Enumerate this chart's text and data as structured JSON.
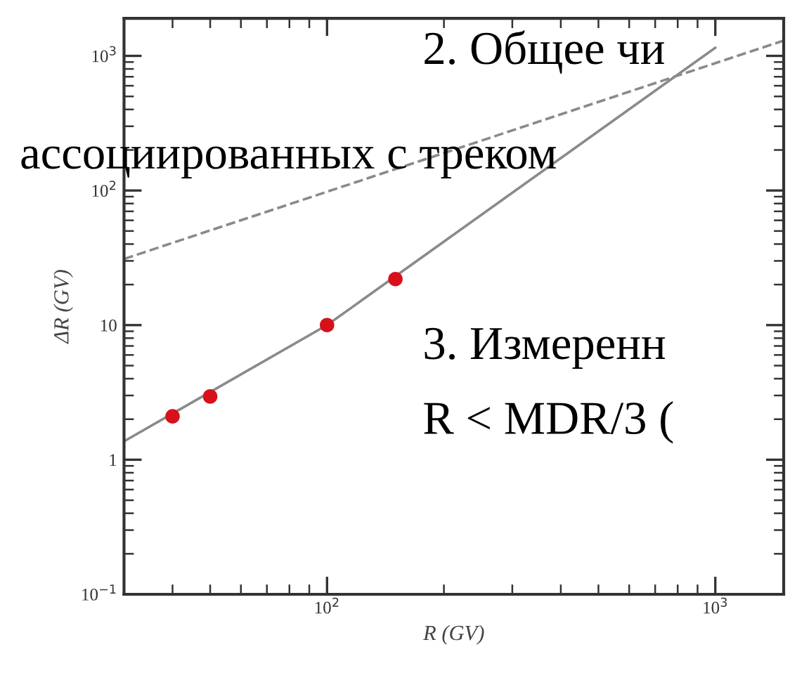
{
  "chart_data": {
    "type": "line",
    "xlabel": "R (GV)",
    "ylabel": "ΔR (GV)",
    "log": "xy",
    "xlim": [
      30,
      1500
    ],
    "ylim": [
      0.1,
      1900
    ],
    "xticks": [
      {
        "value": 100,
        "label": "10$^{2}$"
      },
      {
        "value": 1000,
        "label": "10$^{3}$"
      }
    ],
    "yticks": [
      {
        "value": 0.1,
        "label": "10$^{−1}$"
      },
      1,
      10,
      {
        "value": 100,
        "label": "10$^{2}$"
      },
      {
        "value": 1000,
        "label": "10$^{3}$"
      }
    ],
    "grid": false,
    "legend": false,
    "series": [
      {
        "color": "#8a8a8a",
        "line_style": "solid",
        "x": [
          30,
          100,
          1000
        ],
        "values": [
          1.37,
          10,
          1150
        ]
      },
      {
        "color": "#8a8a8a",
        "line_style": "dashed",
        "x": [
          30,
          1500
        ],
        "values": [
          31,
          1300
        ]
      },
      {
        "type": "scatter",
        "color": "#d7101a",
        "marker": "circle",
        "x": [
          40,
          50,
          100,
          150
        ],
        "values": [
          2.1,
          2.95,
          10,
          22
        ]
      }
    ],
    "annotations": [
      "2. Общее чи",
      "ассоциированных с треком",
      "3. Измеренн",
      "R < MDR/3 ("
    ]
  }
}
